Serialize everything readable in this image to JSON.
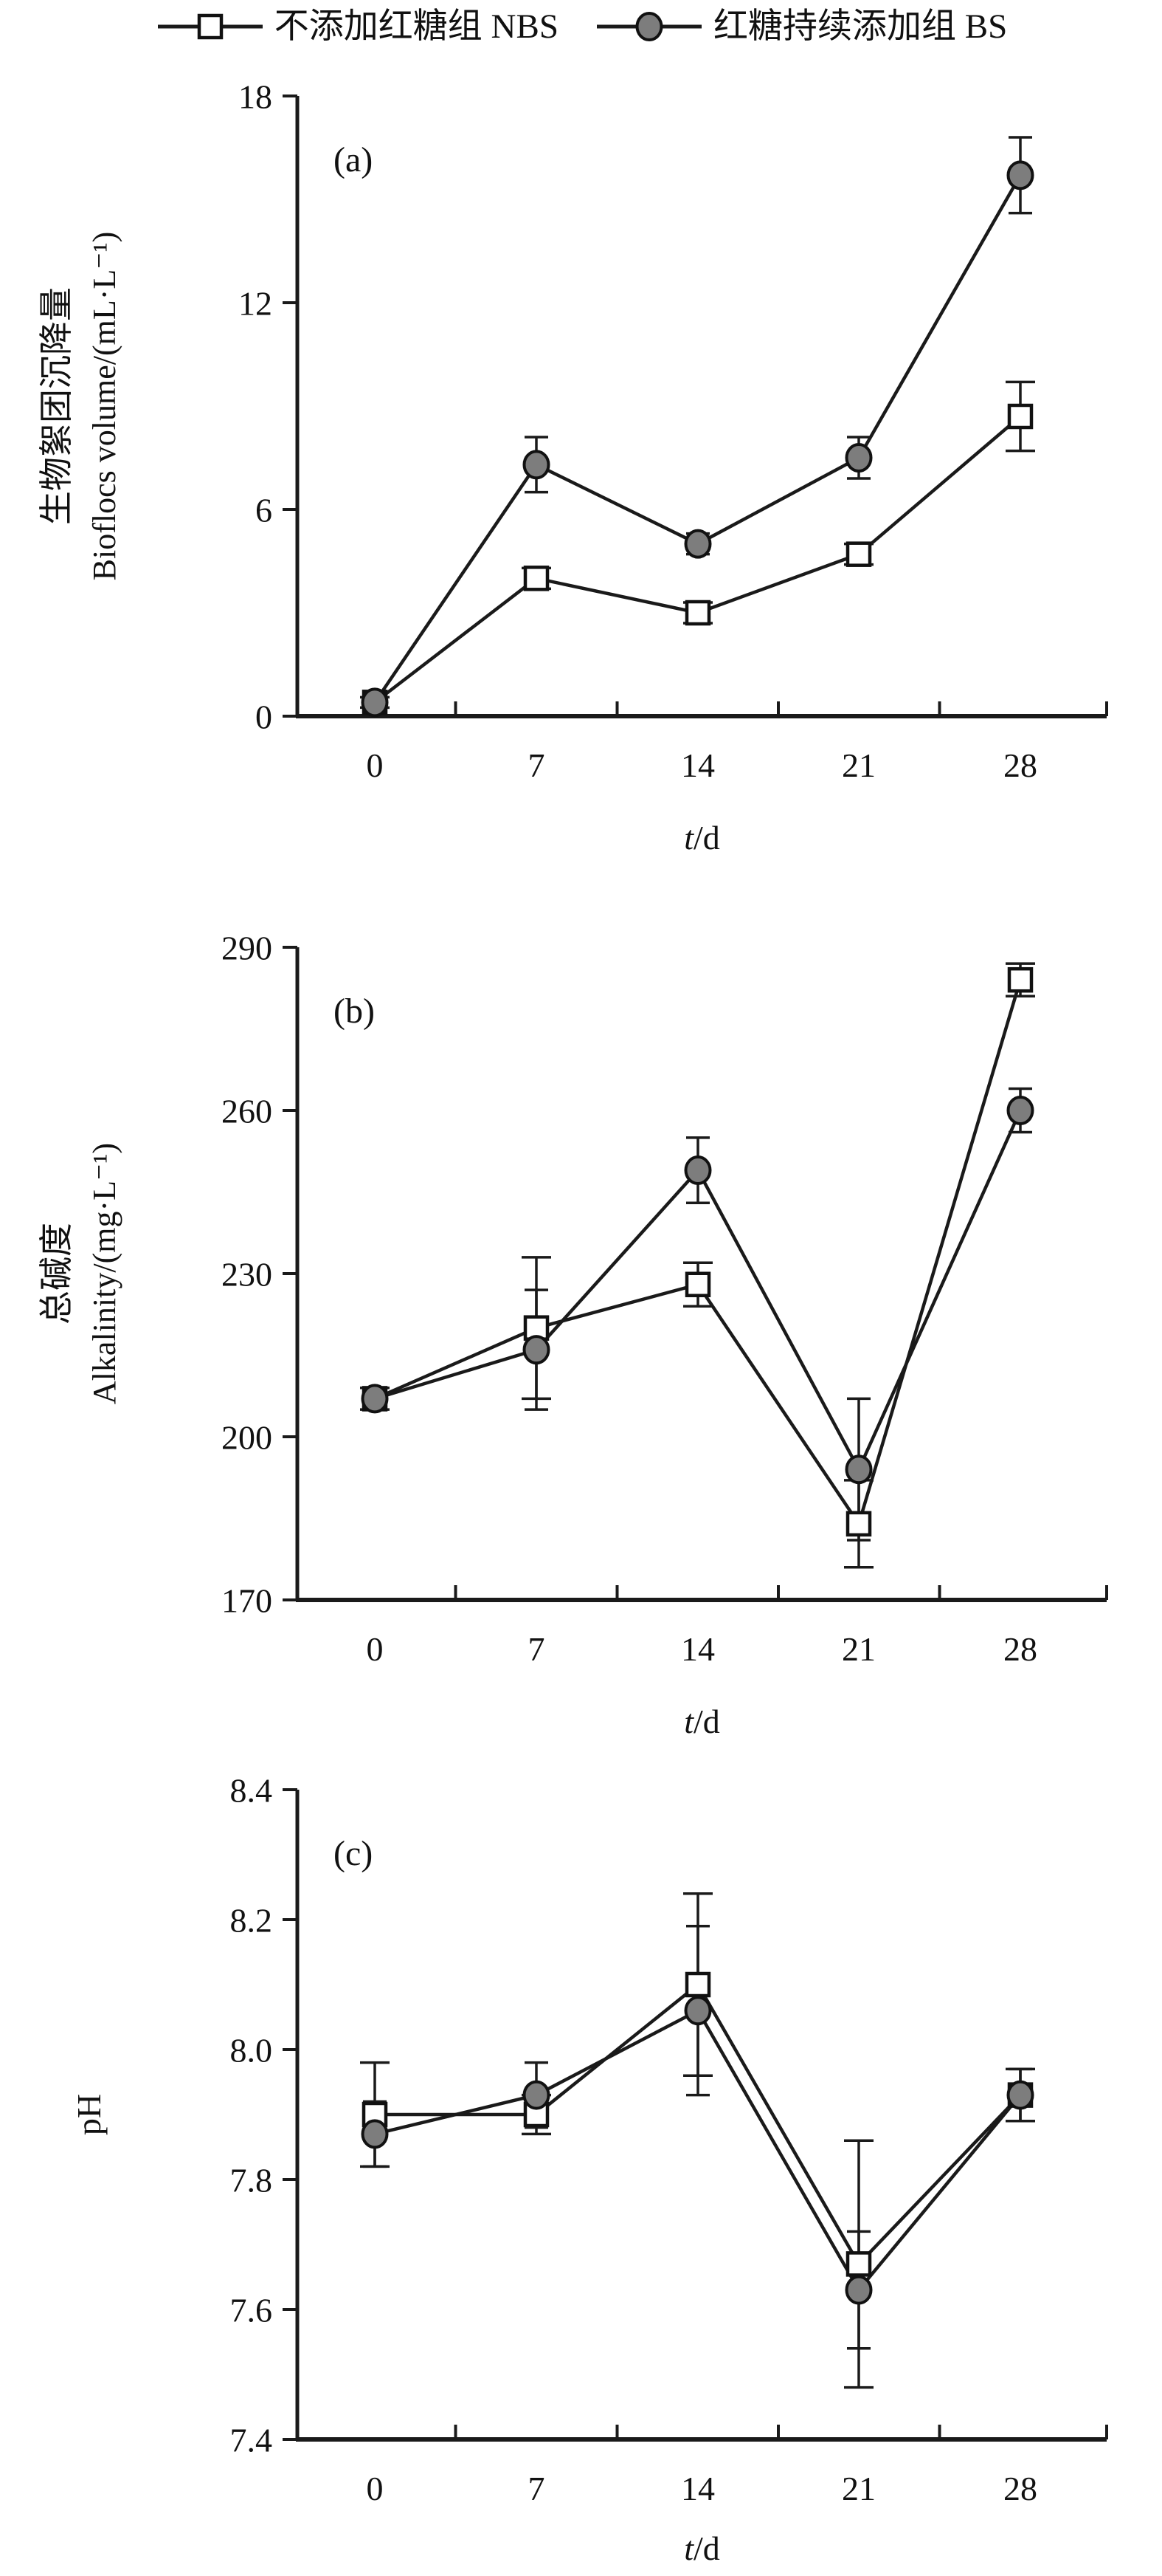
{
  "figure": {
    "legend": {
      "items": [
        {
          "label": "不添加红糖组 NBS",
          "marker": "square"
        },
        {
          "label": "红糖持续添加组 BS",
          "marker": "circle"
        }
      ]
    },
    "colors": {
      "line": "#1a1a1a",
      "circle_fill": "#7d7d7d",
      "square_fill": "#ffffff",
      "text": "#111111"
    }
  },
  "chart_data": [
    {
      "type": "line",
      "panel_label": "(a)",
      "title": "",
      "categories": [
        "0",
        "7",
        "14",
        "21",
        "28"
      ],
      "x": [
        0,
        7,
        14,
        21,
        28
      ],
      "xlabel": "t/d",
      "ylabel_zh": "生物絮团沉降量",
      "ylabel_en": "Bioflocs volume/(mL·L⁻¹)",
      "ylim": [
        0,
        18
      ],
      "yticks": [
        "0",
        "6",
        "12",
        "18"
      ],
      "grid": false,
      "legend_position": "top",
      "series": [
        {
          "name": "不添加红糖组 NBS",
          "marker": "square",
          "values": [
            0.4,
            4.0,
            3.0,
            4.7,
            8.7
          ],
          "errors": [
            0.15,
            0.3,
            0.3,
            0.3,
            1.0
          ]
        },
        {
          "name": "红糖持续添加组 BS",
          "marker": "circle",
          "values": [
            0.4,
            7.3,
            5.0,
            7.5,
            15.7
          ],
          "errors": [
            0.15,
            0.8,
            0.3,
            0.6,
            1.1
          ]
        }
      ]
    },
    {
      "type": "line",
      "panel_label": "(b)",
      "title": "",
      "categories": [
        "0",
        "7",
        "14",
        "21",
        "28"
      ],
      "x": [
        0,
        7,
        14,
        21,
        28
      ],
      "xlabel": "t/d",
      "ylabel_zh": "总碱度",
      "ylabel_en": "Alkalinity/(mg·L⁻¹)",
      "ylim": [
        170,
        290
      ],
      "yticks": [
        "170",
        "200",
        "230",
        "260",
        "290"
      ],
      "grid": false,
      "legend_position": "top",
      "series": [
        {
          "name": "不添加红糖组 NBS",
          "marker": "square",
          "values": [
            207,
            220,
            228,
            184,
            284
          ],
          "errors": [
            2,
            13,
            4,
            8,
            3
          ]
        },
        {
          "name": "红糖持续添加组 BS",
          "marker": "circle",
          "values": [
            207,
            216,
            249,
            194,
            260
          ],
          "errors": [
            2,
            11,
            6,
            13,
            4
          ]
        }
      ]
    },
    {
      "type": "line",
      "panel_label": "(c)",
      "title": "",
      "categories": [
        "0",
        "7",
        "14",
        "21",
        "28"
      ],
      "x": [
        0,
        7,
        14,
        21,
        28
      ],
      "xlabel": "t/d",
      "ylabel_zh": "",
      "ylabel_en": "pH",
      "ylim": [
        7.4,
        8.4
      ],
      "yticks": [
        "7.4",
        "7.6",
        "7.8",
        "8.0",
        "8.2",
        "8.4"
      ],
      "grid": false,
      "legend_position": "top",
      "series": [
        {
          "name": "不添加红糖组 NBS",
          "marker": "square",
          "values": [
            7.9,
            7.9,
            8.1,
            7.67,
            7.93
          ],
          "errors": [
            0.08,
            0.03,
            0.14,
            0.19,
            0.04
          ]
        },
        {
          "name": "红糖持续添加组 BS",
          "marker": "circle",
          "values": [
            7.87,
            7.93,
            8.06,
            7.63,
            7.93
          ],
          "errors": [
            0.05,
            0.05,
            0.13,
            0.09,
            0.04
          ]
        }
      ]
    }
  ]
}
